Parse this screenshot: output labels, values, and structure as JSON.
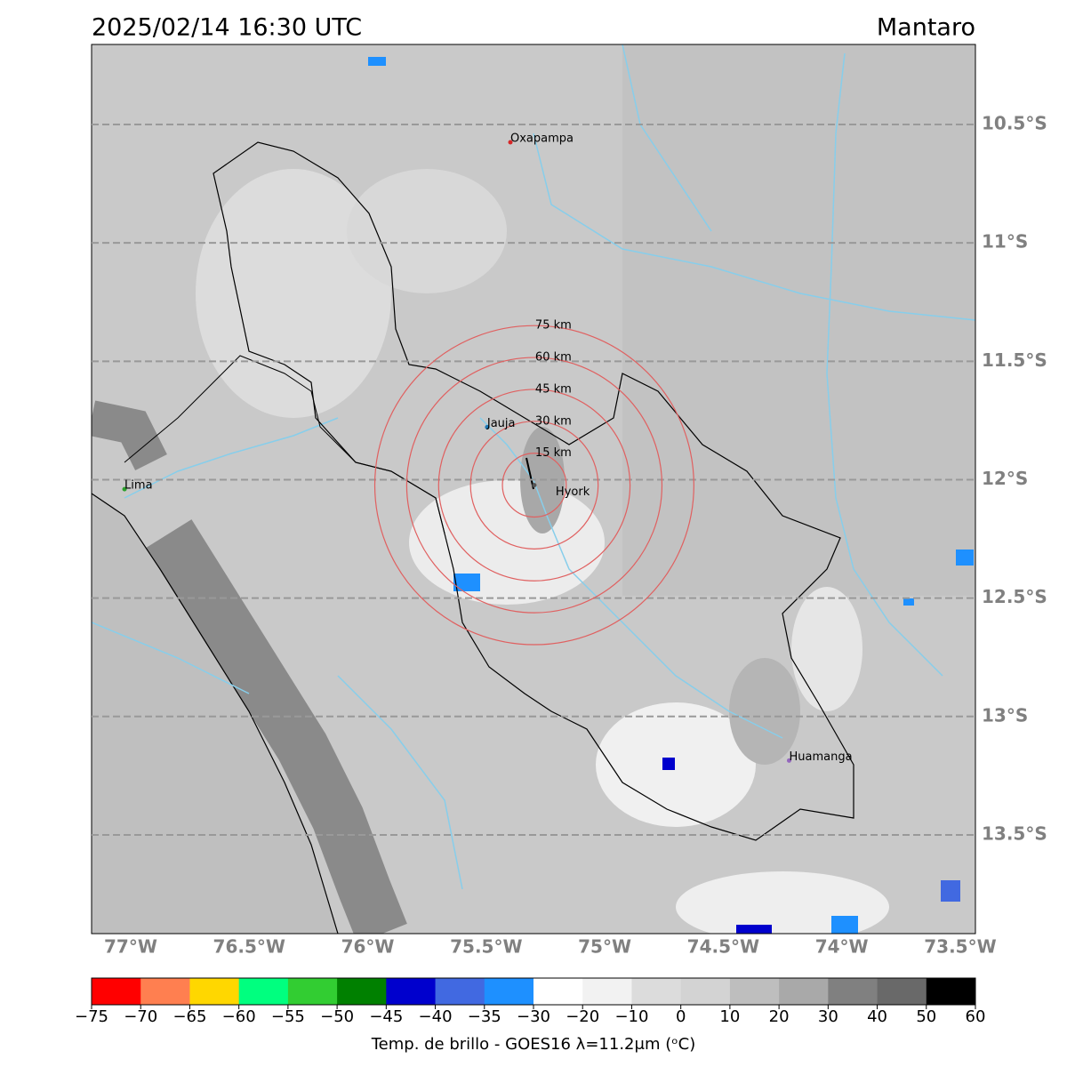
{
  "map": {
    "title": "2025/02/14 16:30 UTC",
    "region": "Mantaro",
    "lonlim": [
      -77.165,
      -73.436
    ],
    "latlim": [
      -13.917,
      -10.162
    ],
    "lonticks": [
      {
        "value": -77,
        "label": "77°W"
      },
      {
        "value": -76.5,
        "label": "76.5°W"
      },
      {
        "value": -76,
        "label": "76°W"
      },
      {
        "value": -75.5,
        "label": "75.5°W"
      },
      {
        "value": -75,
        "label": "75°W"
      },
      {
        "value": -74.5,
        "label": "74.5°W"
      },
      {
        "value": -74,
        "label": "74°W"
      },
      {
        "value": -73.5,
        "label": "73.5°W"
      }
    ],
    "latticks": [
      {
        "value": -10.5,
        "label": "10.5°S"
      },
      {
        "value": -11,
        "label": "11°S"
      },
      {
        "value": -11.5,
        "label": "11.5°S"
      },
      {
        "value": -12,
        "label": "12°S"
      },
      {
        "value": -12.5,
        "label": "12.5°S"
      },
      {
        "value": -13,
        "label": "13°S"
      },
      {
        "value": -13.5,
        "label": "13.5°S"
      }
    ],
    "places": [
      {
        "name": "Oxapampa",
        "lon": -75.398,
        "lat": -10.575,
        "color": "#d62728"
      },
      {
        "name": "Hyork",
        "lon": -75.297,
        "lat": -12.023,
        "color": "#555555",
        "rings": [
          {
            "radius_km": 15,
            "label": "15 km"
          },
          {
            "radius_km": 30,
            "label": "30 km"
          },
          {
            "radius_km": 45,
            "label": "45 km"
          },
          {
            "radius_km": 60,
            "label": "60 km"
          },
          {
            "radius_km": 75,
            "label": "75 km"
          }
        ]
      },
      {
        "name": "Jauja",
        "lon": -75.496,
        "lat": -11.778,
        "color": "#1f77b4"
      },
      {
        "name": "Lima",
        "lon": -77.026,
        "lat": -12.04,
        "color": "#2ca02c"
      },
      {
        "name": "Huamanga",
        "lon": -74.222,
        "lat": -13.186,
        "color": "#9467bd"
      }
    ],
    "colorbar": {
      "label": "Temp. de brillo - GOES16 λ=11.2μm (ᵒC)",
      "ticks": [
        {
          "value": -75,
          "label": "−75"
        },
        {
          "value": -70,
          "label": "−70"
        },
        {
          "value": -65,
          "label": "−65"
        },
        {
          "value": -60,
          "label": "−60"
        },
        {
          "value": -55,
          "label": "−55"
        },
        {
          "value": -50,
          "label": "−50"
        },
        {
          "value": -45,
          "label": "−45"
        },
        {
          "value": -40,
          "label": "−40"
        },
        {
          "value": -35,
          "label": "−35"
        },
        {
          "value": -30,
          "label": "−30"
        },
        {
          "value": -20,
          "label": "−20"
        },
        {
          "value": -10,
          "label": "−10"
        },
        0,
        10,
        20,
        30,
        40,
        50,
        60
      ],
      "colors": [
        "#ff0000",
        "#ff7f50",
        "#ffd700",
        "#00ff7f",
        "#32cd32",
        "#008000",
        "#0000cd",
        "#4169e1",
        "#1e90ff",
        "#ffffff",
        "#f2f2f2",
        "#dcdcdc",
        "#d3d3d3",
        "#bebebe",
        "#a9a9a9",
        "#808080",
        "#696969",
        "#000000"
      ]
    }
  }
}
